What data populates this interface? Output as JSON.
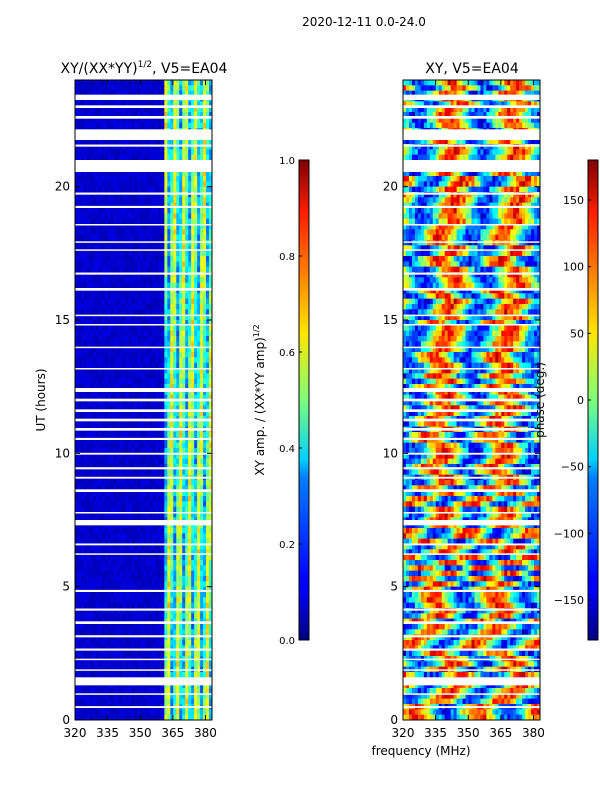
{
  "suptitle": "2020-12-11 0.0-24.0",
  "xlabel": "frequency (MHz)",
  "ylabel": "UT (hours)",
  "chart_data": [
    {
      "type": "heatmap",
      "title": "XY/(XX*YY)",
      "title_sup": "1/2",
      "title_suffix": ", V5=EA04",
      "xlabel": "frequency (MHz)",
      "ylabel": "UT (hours)",
      "xlim": [
        320,
        383
      ],
      "ylim": [
        0,
        24
      ],
      "xticks": [
        320,
        335,
        350,
        365,
        380
      ],
      "yticks": [
        0,
        5,
        10,
        15,
        20
      ],
      "colormap": "jet",
      "colorbar": {
        "label": "XY amp. / (XX*YY amp)",
        "label_sup": "1/2",
        "range": [
          0.0,
          1.0
        ],
        "ticks": [
          0.0,
          0.2,
          0.4,
          0.6,
          0.8,
          1.0
        ],
        "tick_labels": [
          "0.0",
          "0.2",
          "0.4",
          "0.6",
          "0.8",
          "1.0"
        ]
      },
      "description_bands": [
        {
          "x_from": 320,
          "x_to": 361,
          "value": 0.05
        },
        {
          "x_from": 361,
          "x_to": 383,
          "value": 0.45
        }
      ]
    },
    {
      "type": "heatmap",
      "title": "XY, V5=EA04",
      "xlabel": "frequency (MHz)",
      "xlim": [
        320,
        383
      ],
      "ylim": [
        0,
        24
      ],
      "xticks": [
        320,
        335,
        350,
        365,
        380
      ],
      "yticks": [
        0,
        5,
        10,
        15,
        20
      ],
      "colormap": "jet",
      "colorbar": {
        "label": "phase (deg.)",
        "range": [
          -180,
          180
        ],
        "ticks": [
          -150,
          -100,
          -50,
          0,
          50,
          100,
          150
        ],
        "tick_labels": [
          "−150",
          "−100",
          "−50",
          "0",
          "50",
          "100",
          "150"
        ]
      }
    }
  ],
  "data_gaps_ut_hours": [
    [
      23.25,
      23.45
    ],
    [
      22.95,
      23.05
    ],
    [
      22.55,
      22.65
    ],
    [
      21.75,
      22.15
    ],
    [
      21.5,
      21.58
    ],
    [
      20.55,
      21.0
    ],
    [
      19.7,
      19.78
    ],
    [
      19.2,
      19.28
    ],
    [
      18.55,
      18.6
    ],
    [
      17.9,
      17.95
    ],
    [
      17.6,
      17.65
    ],
    [
      16.7,
      16.78
    ],
    [
      16.1,
      16.2
    ],
    [
      15.15,
      15.2
    ],
    [
      14.8,
      14.85
    ],
    [
      13.95,
      14.0
    ],
    [
      13.15,
      13.2
    ],
    [
      12.3,
      12.45
    ],
    [
      11.95,
      12.05
    ],
    [
      11.55,
      11.65
    ],
    [
      11.2,
      11.3
    ],
    [
      10.85,
      10.95
    ],
    [
      10.5,
      10.58
    ],
    [
      9.95,
      10.02
    ],
    [
      9.4,
      9.48
    ],
    [
      9.05,
      9.12
    ],
    [
      8.55,
      8.65
    ],
    [
      7.75,
      7.8
    ],
    [
      7.3,
      7.5
    ],
    [
      6.55,
      6.62
    ],
    [
      6.2,
      6.25
    ],
    [
      4.8,
      4.88
    ],
    [
      4.1,
      4.18
    ],
    [
      3.6,
      3.7
    ],
    [
      3.1,
      3.18
    ],
    [
      2.6,
      2.68
    ],
    [
      2.25,
      2.3
    ],
    [
      1.85,
      1.9
    ],
    [
      1.3,
      1.6
    ],
    [
      0.95,
      1.0
    ],
    [
      0.45,
      0.52
    ]
  ]
}
